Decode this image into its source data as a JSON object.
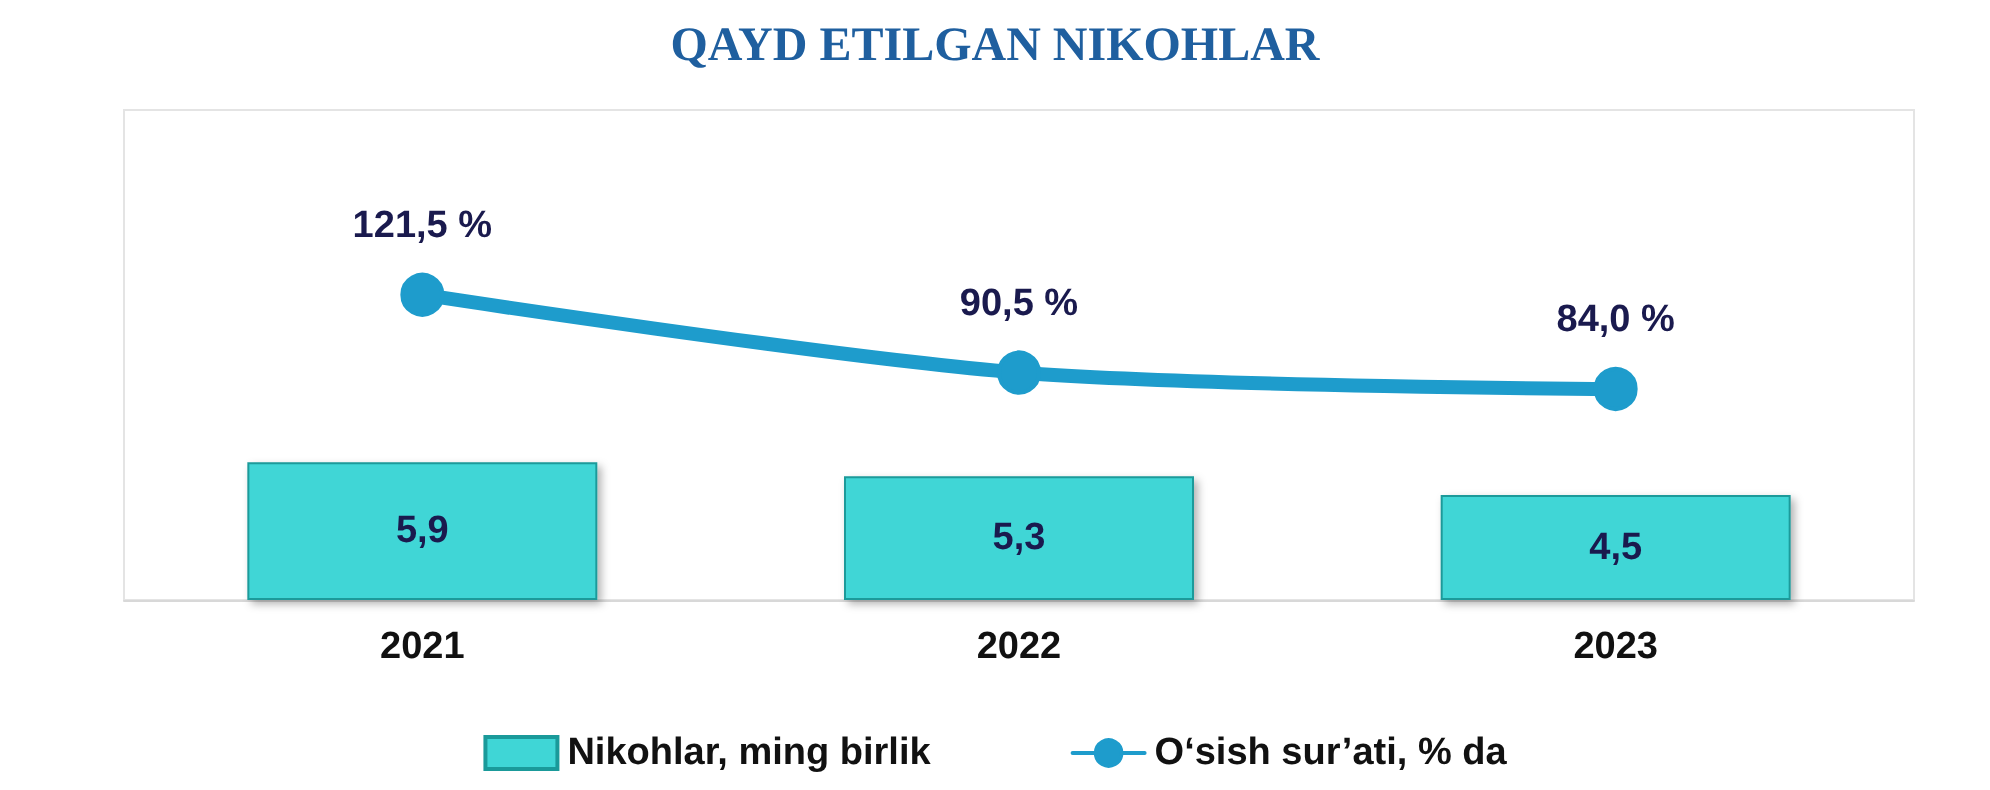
{
  "chart_data": {
    "type": "bar",
    "title": "QAYD ETILGAN NIKOHLAR",
    "categories": [
      "2021",
      "2022",
      "2023"
    ],
    "series": [
      {
        "name": "Nikohlar, ming birlik",
        "color": "#3fd6d6",
        "values": [
          5.9,
          5.3,
          4.5
        ],
        "value_labels": [
          "5,9",
          "5,3",
          "4,5"
        ]
      },
      {
        "name": "O‘sish sur’ati, % da",
        "type": "line",
        "axis": "y2",
        "color": "#1e9ccc",
        "values": [
          121.5,
          90.5,
          84.0
        ],
        "value_labels": [
          "121,5 %",
          "90,5 %",
          "84,0 %"
        ]
      }
    ],
    "ylim": [
      0,
      21
    ],
    "y2lim": [
      0,
      195
    ],
    "tick_labels": "x",
    "marker": "circle",
    "line_style": "solid",
    "legend": "bottom"
  }
}
